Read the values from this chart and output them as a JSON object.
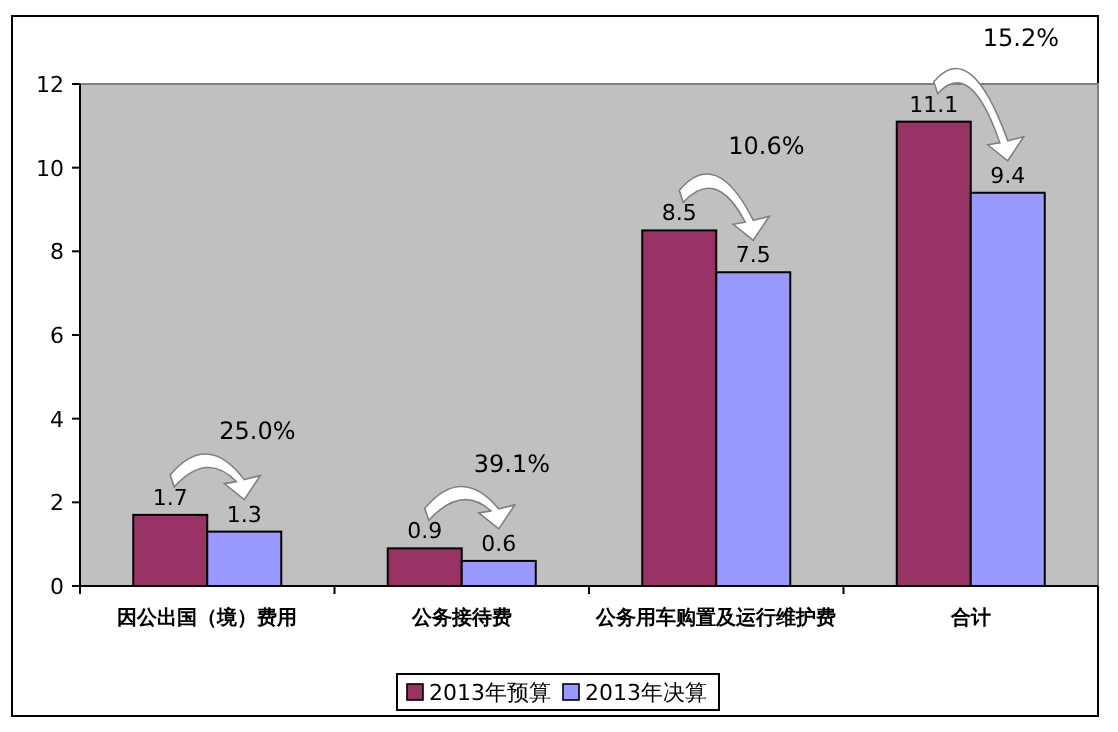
{
  "chart_data": {
    "type": "bar",
    "categories": [
      "因公出国（境）费用",
      "公务接待费",
      "公务用车购置及运行维护费",
      "合计"
    ],
    "series": [
      {
        "name": "2013年预算",
        "color": "#993366",
        "values": [
          1.7,
          0.9,
          8.5,
          11.1
        ]
      },
      {
        "name": "2013年决算",
        "color": "#9999ff",
        "values": [
          1.3,
          0.6,
          7.5,
          9.4
        ]
      }
    ],
    "data_labels": true,
    "ylim": [
      0,
      12
    ],
    "yticks": [
      0,
      2,
      4,
      6,
      8,
      10,
      12
    ],
    "grid": false,
    "legend": "bottom",
    "annotations": [
      "25.0%",
      "39.1%",
      "10.6%",
      "15.2%"
    ]
  }
}
